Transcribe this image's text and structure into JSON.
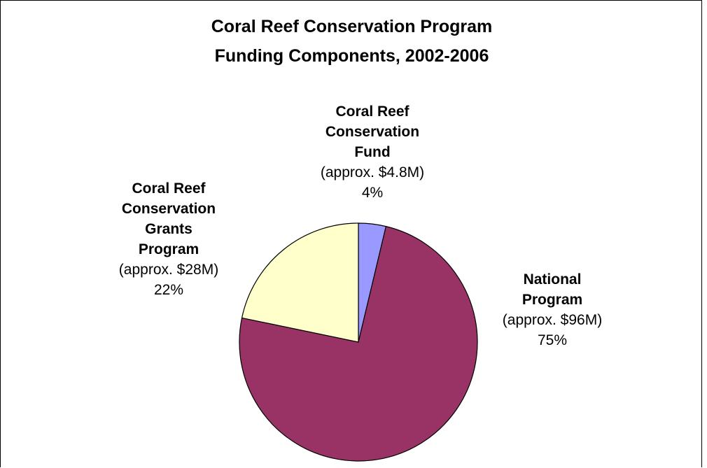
{
  "chart_data": {
    "type": "pie",
    "title": [
      "Coral Reef Conservation Program",
      "Funding Components, 2002-2006"
    ],
    "slices": [
      {
        "label_lines": [
          "Coral Reef",
          "Conservation",
          "Fund"
        ],
        "amount_text": "(approx. $4.8M)",
        "percent_text": "4%",
        "value": 4.8,
        "color": "#9999ff"
      },
      {
        "label_lines": [
          "National",
          "Program"
        ],
        "amount_text": "(approx. $96M)",
        "percent_text": "75%",
        "value": 96,
        "color": "#993366"
      },
      {
        "label_lines": [
          "Coral Reef",
          "Conservation",
          "Grants",
          "Program"
        ],
        "amount_text": "(approx. $28M)",
        "percent_text": "22%",
        "value": 28,
        "color": "#ffffcc"
      }
    ],
    "legend": "none"
  }
}
